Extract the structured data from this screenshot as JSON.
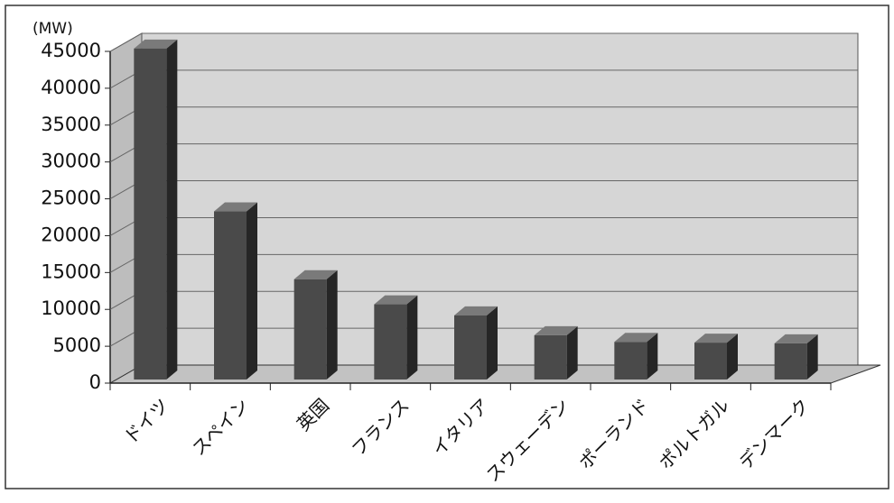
{
  "chart_data": {
    "type": "bar3d",
    "y_label": "(MW)",
    "categories": [
      "ドイツ",
      "スペイン",
      "英国",
      "フランス",
      "イタリア",
      "スウェーデン",
      "ポーランド",
      "ポルトガル",
      "デンマーク"
    ],
    "values": [
      44900,
      22800,
      13600,
      10200,
      8700,
      6000,
      5100,
      5000,
      4900
    ],
    "color": "#4a4a4a",
    "ylim": [
      0,
      45000
    ],
    "yticks": [
      0,
      5000,
      10000,
      15000,
      20000,
      25000,
      30000,
      35000,
      40000,
      45000
    ],
    "grid": true
  }
}
